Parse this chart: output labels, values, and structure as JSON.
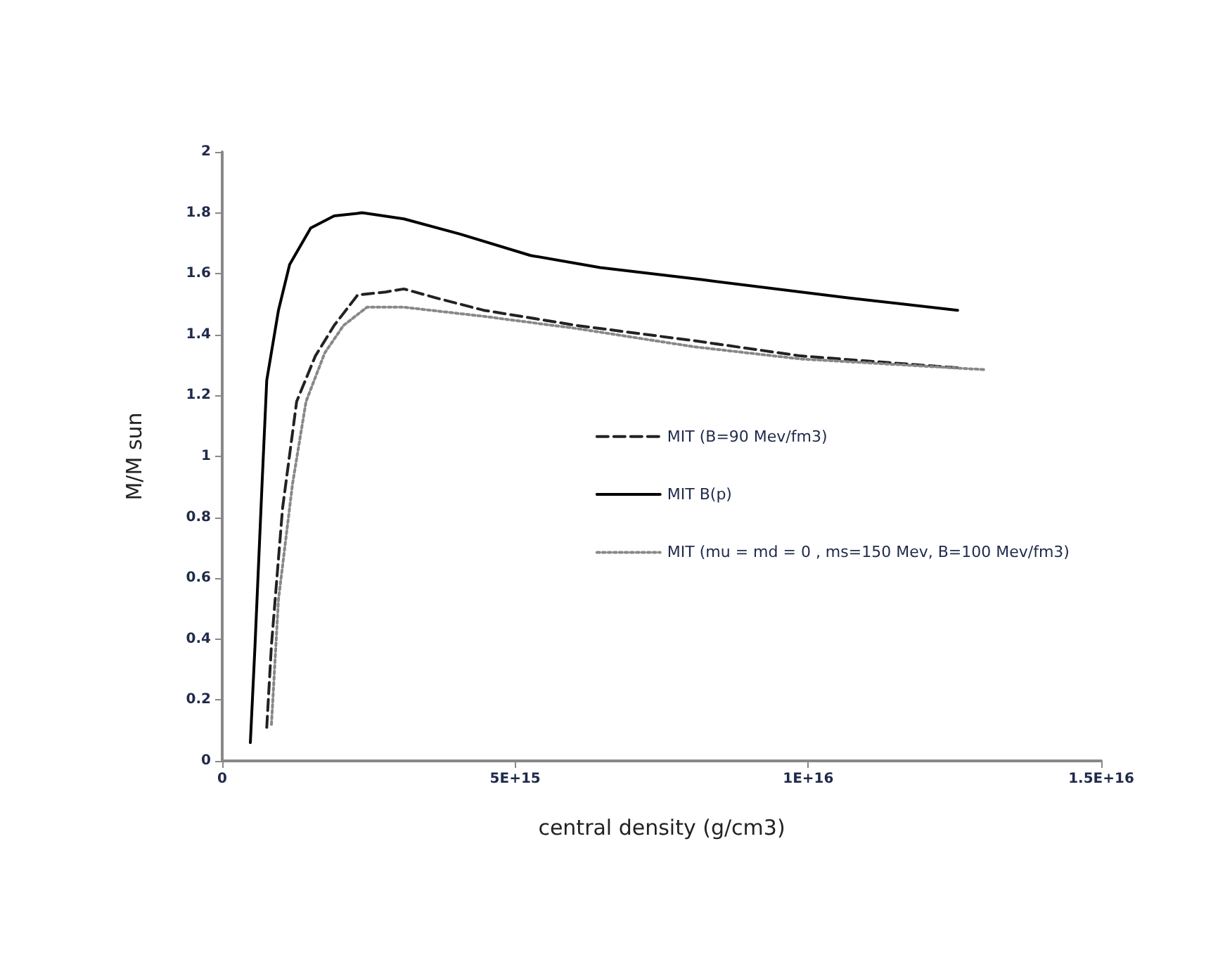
{
  "chart_data": {
    "type": "line",
    "xlabel": "central density (g/cm3)",
    "ylabel": "M/M sun",
    "xlim": [
      0,
      1.5e+16
    ],
    "xticks": [
      0,
      {
        "value": 5000000000000000.0,
        "label": "5E+15"
      },
      {
        "value": 1e+16,
        "label": "1E+16"
      },
      {
        "value": 1.5e+16,
        "label": "1.5E+16"
      }
    ],
    "ylim": [
      0,
      2
    ],
    "yticks": [
      0,
      0.2,
      0.4,
      0.6,
      0.8,
      1,
      1.2,
      1.4,
      1.6,
      1.8,
      2
    ],
    "grid": false,
    "legend": "right",
    "marker": "none",
    "series": [
      {
        "name": "MIT (B=90 Mev/fm3)",
        "color": "#222222",
        "line_style": "dashed",
        "x": [
          760000000000000.0,
          840000000000000.0,
          1030000000000000.0,
          1270000000000000.0,
          1590000000000000.0,
          1910000000000000.0,
          2310000000000000.0,
          2790000000000000.0,
          3100000000000000.0,
          3660000000000000.0,
          4460000000000000.0,
          6050000000000000.0,
          8050000000000000.0,
          9870000000000000.0,
          1.26e+16
        ],
        "values": [
          0.11,
          0.38,
          0.83,
          1.18,
          1.33,
          1.43,
          1.53,
          1.54,
          1.55,
          1.52,
          1.48,
          1.43,
          1.38,
          1.33,
          1.29
        ]
      },
      {
        "name": "MIT B(p)",
        "color": "#000000",
        "line_style": "solid",
        "x": [
          480000000000000.0,
          560000000000000.0,
          680000000000000.0,
          760000000000000.0,
          960000000000000.0,
          1150000000000000.0,
          1510000000000000.0,
          1910000000000000.0,
          2390000000000000.0,
          3100000000000000.0,
          4060000000000000.0,
          5260000000000000.0,
          6450000000000000.0,
          8200000000000000.0,
          1.07e+16,
          1.255e+16
        ],
        "values": [
          0.06,
          0.38,
          0.91,
          1.25,
          1.48,
          1.63,
          1.75,
          1.79,
          1.8,
          1.78,
          1.73,
          1.66,
          1.62,
          1.58,
          1.52,
          1.48
        ]
      },
      {
        "name": "MIT (mu = md = 0 , ms=150 Mev, B=100 Mev/fm3)",
        "color": "#888888",
        "line_style": "dotted",
        "x": [
          840000000000000.0,
          960000000000000.0,
          1200000000000000.0,
          1430000000000000.0,
          1750000000000000.0,
          2070000000000000.0,
          2470000000000000.0,
          3100000000000000.0,
          4460000000000000.0,
          6050000000000000.0,
          8050000000000000.0,
          9870000000000000.0,
          1.3e+16
        ],
        "values": [
          0.12,
          0.53,
          0.91,
          1.18,
          1.34,
          1.43,
          1.49,
          1.49,
          1.46,
          1.42,
          1.36,
          1.32,
          1.285
        ]
      }
    ]
  }
}
